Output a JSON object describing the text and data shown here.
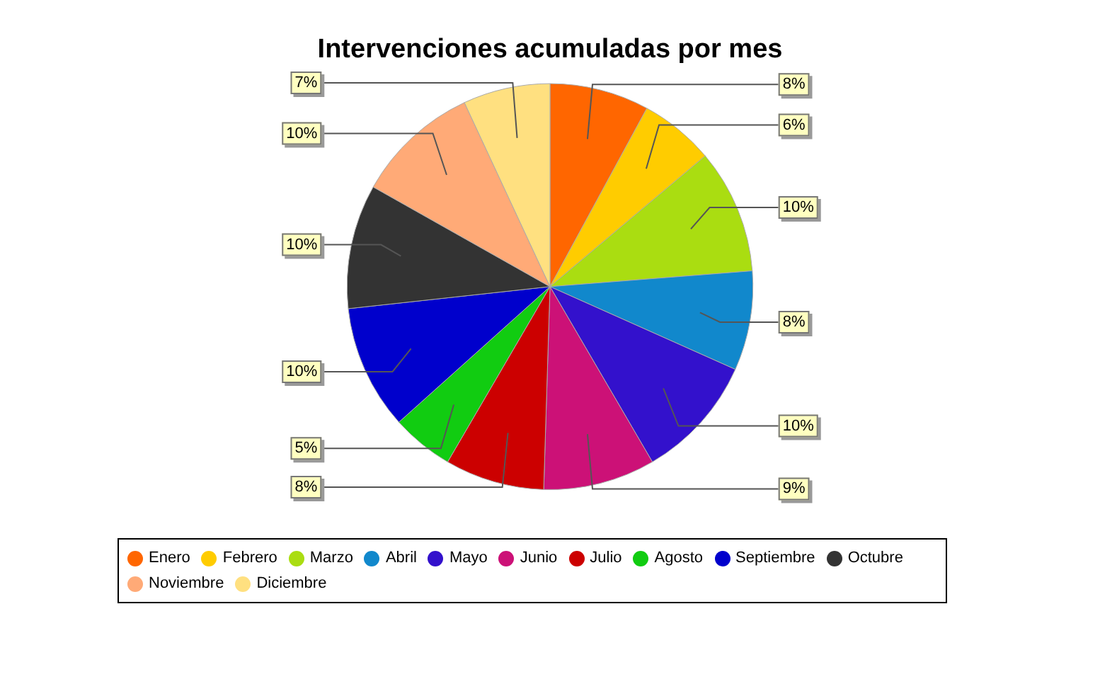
{
  "chart_data": {
    "type": "pie",
    "title": "Intervenciones acumuladas por mes",
    "categories": [
      "Enero",
      "Febrero",
      "Marzo",
      "Abril",
      "Mayo",
      "Junio",
      "Julio",
      "Agosto",
      "Septiembre",
      "Octubre",
      "Noviembre",
      "Diciembre"
    ],
    "values": [
      8,
      6,
      10,
      8,
      10,
      9,
      8,
      5,
      10,
      10,
      10,
      7
    ],
    "colors": [
      "#ff6600",
      "#ffcc00",
      "#aadd11",
      "#1188cc",
      "#3311cc",
      "#cc1177",
      "#cc0000",
      "#11cc11",
      "#0000cc",
      "#333333",
      "#ffaa77",
      "#ffe080"
    ],
    "value_labels": [
      "8%",
      "6%",
      "10%",
      "8%",
      "10%",
      "9%",
      "8%",
      "5%",
      "10%",
      "10%",
      "10%",
      "7%"
    ],
    "legend": "bottom"
  }
}
